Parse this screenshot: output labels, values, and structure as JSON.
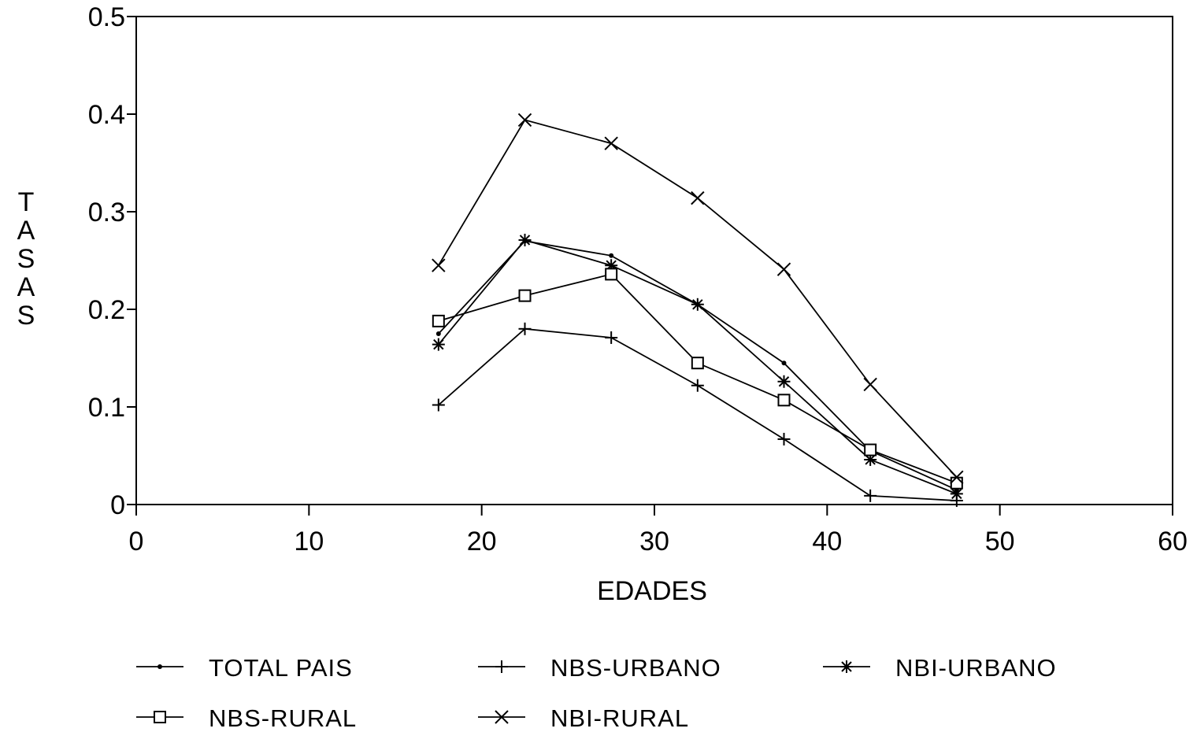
{
  "chart_data": {
    "type": "line",
    "xlabel": "EDADES",
    "ylabel": "TASAS",
    "xlim": [
      0,
      60
    ],
    "ylim": [
      0,
      0.5
    ],
    "x_ticks": [
      "0",
      "10",
      "20",
      "30",
      "40",
      "50",
      "60"
    ],
    "y_ticks": [
      "0",
      "0.1",
      "0.2",
      "0.3",
      "0.4",
      "0.5"
    ],
    "grid": false,
    "legend_position": "bottom",
    "x": [
      17.5,
      22.5,
      27.5,
      32.5,
      37.5,
      42.5,
      47.5
    ],
    "series": [
      {
        "name": "TOTAL PAIS",
        "marker": "dot",
        "values": [
          0.175,
          0.27,
          0.255,
          0.205,
          0.145,
          0.055,
          0.015
        ]
      },
      {
        "name": "NBS-URBANO",
        "marker": "plus",
        "values": [
          0.102,
          0.18,
          0.171,
          0.122,
          0.067,
          0.009,
          0.004
        ]
      },
      {
        "name": "NBI-URBANO",
        "marker": "asterisk",
        "values": [
          0.164,
          0.271,
          0.245,
          0.205,
          0.126,
          0.046,
          0.011
        ]
      },
      {
        "name": "NBS-RURAL",
        "marker": "square",
        "values": [
          0.188,
          0.214,
          0.236,
          0.145,
          0.107,
          0.056,
          0.022
        ]
      },
      {
        "name": "NBI-RURAL",
        "marker": "x",
        "values": [
          0.245,
          0.394,
          0.37,
          0.314,
          0.241,
          0.123,
          0.028
        ]
      }
    ]
  }
}
